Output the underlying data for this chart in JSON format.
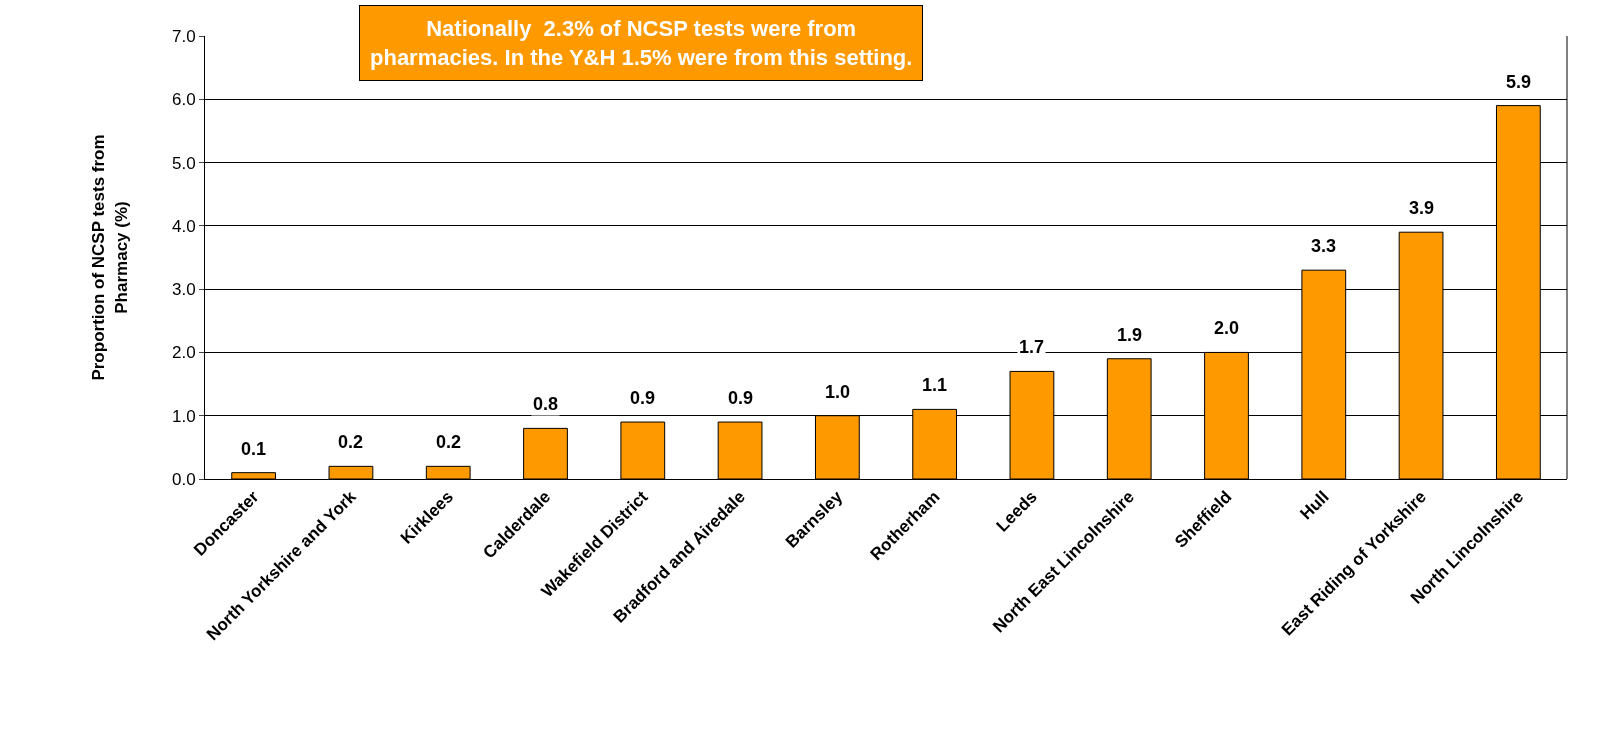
{
  "chart_data": {
    "type": "bar",
    "ylabel": "Proportion of NCSP tests from Pharmacy (%)",
    "categories": [
      "Doncaster",
      "North Yorkshire and York",
      "Kirklees",
      "Calderdale",
      "Wakefield District",
      "Bradford and Airedale",
      "Barnsley",
      "Rotherham",
      "Leeds",
      "North East Lincolnshire",
      "Sheffield",
      "Hull",
      "East Riding of Yorkshire",
      "North Lincolnshire"
    ],
    "values": [
      0.1,
      0.2,
      0.2,
      0.8,
      0.9,
      0.9,
      1.0,
      1.1,
      1.7,
      1.9,
      2.0,
      3.3,
      3.9,
      5.9
    ],
    "color": "#ff9900",
    "value_labels": [
      "0.1",
      "0.2",
      "0.2",
      "0.8",
      "0.9",
      "0.9",
      "1.0",
      "1.1",
      "1.7",
      "1.9",
      "2.0",
      "3.3",
      "3.9",
      "5.9"
    ],
    "ylim": [
      0,
      7
    ],
    "yticks": [
      {
        "value": 0,
        "label": "0.0"
      },
      {
        "value": 1,
        "label": "1.0"
      },
      {
        "value": 2,
        "label": "2.0"
      },
      {
        "value": 3,
        "label": "3.0"
      },
      {
        "value": 4,
        "label": "4.0"
      },
      {
        "value": 5,
        "label": "5.0"
      },
      {
        "value": 6,
        "label": "6.0"
      },
      {
        "value": 7,
        "label": "7.0"
      }
    ],
    "grid": "y",
    "legend": false,
    "annotations": [
      "Nationally  2.3% of NCSP tests were from pharmacies. In the Y&H 1.5% were from this setting."
    ]
  }
}
